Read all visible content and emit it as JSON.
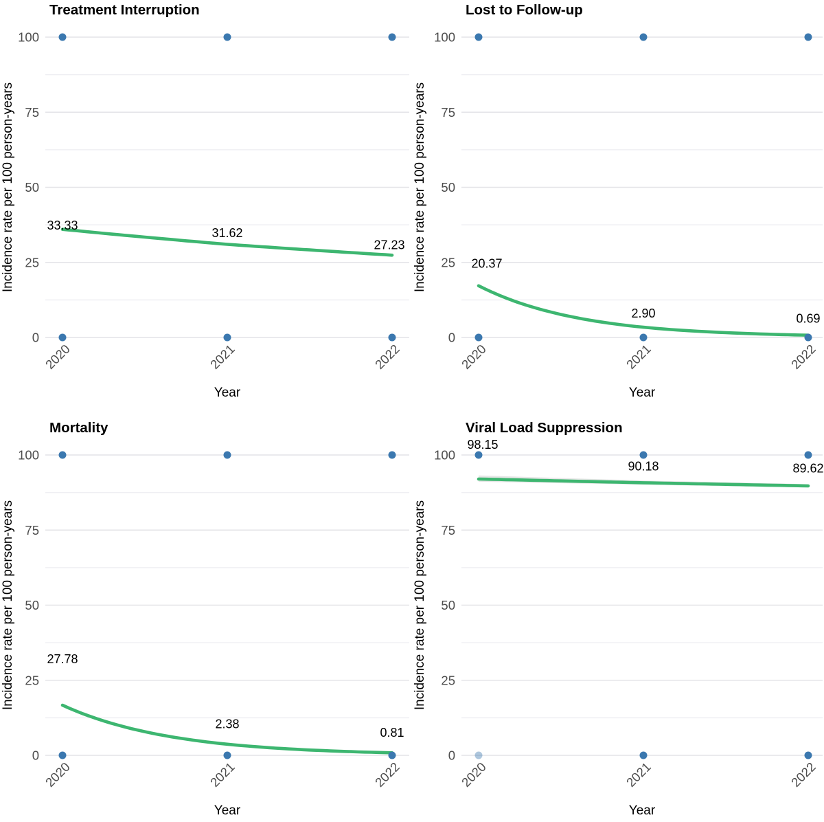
{
  "figure_title": "",
  "style": {
    "point_color": "#3b78af",
    "light_point_opacity": 0.42,
    "smooth_line_color": "#3db670",
    "ribbon_color": "#d2d2d2",
    "grid_major_color": "#e3e3e7",
    "grid_minor_color": "#efeff3",
    "tick_text_color": "#4d4d4d",
    "title_text_color": "#000000",
    "background": "#ffffff"
  },
  "chart_data": [
    {
      "type": "scatter",
      "title": "Treatment Interruption",
      "xlabel": "Year",
      "ylabel": "Incidence rate per 100 person-years",
      "x_ticks": [
        "2020",
        "2021",
        "2022"
      ],
      "y_ticks": [
        0,
        25,
        50,
        75,
        100
      ],
      "ylim": [
        0,
        100
      ],
      "grid": true,
      "legend": false,
      "x": [
        2020,
        2021,
        2022
      ],
      "rates": [
        33.33,
        31.62,
        27.23
      ],
      "points": [
        {
          "year": "2020",
          "value": 100
        },
        {
          "year": "2021",
          "value": 100
        },
        {
          "year": "2022",
          "value": 100
        },
        {
          "year": "2020",
          "value": 0
        },
        {
          "year": "2021",
          "value": 0
        },
        {
          "year": "2022",
          "value": 0
        }
      ],
      "trend": [
        36.0,
        31.0,
        27.4
      ],
      "labels": [
        {
          "text": "33.33",
          "year_index": 0,
          "at": 37.3,
          "dx": 0
        },
        {
          "text": "31.62",
          "year_index": 1,
          "at": 34.8,
          "dx": 0
        },
        {
          "text": "27.23",
          "year_index": 2,
          "at": 30.8,
          "dx": -4
        }
      ]
    },
    {
      "type": "scatter",
      "title": "Lost to Follow-up",
      "xlabel": "Year",
      "ylabel": "Incidence rate per 100 person-years",
      "x_ticks": [
        "2020",
        "2021",
        "2022"
      ],
      "y_ticks": [
        0,
        25,
        50,
        75,
        100
      ],
      "ylim": [
        0,
        100
      ],
      "grid": true,
      "legend": false,
      "x": [
        2020,
        2021,
        2022
      ],
      "rates": [
        20.37,
        2.9,
        0.69
      ],
      "points": [
        {
          "year": "2020",
          "value": 100
        },
        {
          "year": "2021",
          "value": 100
        },
        {
          "year": "2022",
          "value": 100
        },
        {
          "year": "2020",
          "value": 0
        },
        {
          "year": "2021",
          "value": 0
        },
        {
          "year": "2022",
          "value": 0
        }
      ],
      "trend": [
        17.2,
        3.4,
        0.75
      ],
      "labels": [
        {
          "text": "20.37",
          "year_index": 0,
          "at": 24.6,
          "dx": 12
        },
        {
          "text": "2.90",
          "year_index": 1,
          "at": 8.0,
          "dx": 0
        },
        {
          "text": "0.69",
          "year_index": 2,
          "at": 6.3,
          "dx": 0
        }
      ]
    },
    {
      "type": "scatter",
      "title": "Mortality",
      "xlabel": "Year",
      "ylabel": "Incidence rate per 100 person-years",
      "x_ticks": [
        "2020",
        "2021",
        "2022"
      ],
      "y_ticks": [
        0,
        25,
        50,
        75,
        100
      ],
      "ylim": [
        0,
        100
      ],
      "grid": true,
      "legend": false,
      "x": [
        2020,
        2021,
        2022
      ],
      "rates": [
        27.78,
        2.38,
        0.81
      ],
      "points": [
        {
          "year": "2020",
          "value": 100
        },
        {
          "year": "2021",
          "value": 100
        },
        {
          "year": "2022",
          "value": 100
        },
        {
          "year": "2020",
          "value": 0
        },
        {
          "year": "2021",
          "value": 0
        },
        {
          "year": "2022",
          "value": 0
        }
      ],
      "trend": [
        16.7,
        3.7,
        0.85
      ],
      "labels": [
        {
          "text": "27.78",
          "year_index": 0,
          "at": 32.0,
          "dx": 0
        },
        {
          "text": "2.38",
          "year_index": 1,
          "at": 10.4,
          "dx": 0
        },
        {
          "text": "0.81",
          "year_index": 2,
          "at": 7.6,
          "dx": 0
        }
      ]
    },
    {
      "type": "scatter",
      "title": "Viral Load Suppression",
      "xlabel": "Year",
      "ylabel": "Incidence rate per 100 person-years",
      "x_ticks": [
        "2020",
        "2021",
        "2022"
      ],
      "y_ticks": [
        0,
        25,
        50,
        75,
        100
      ],
      "ylim": [
        0,
        100
      ],
      "grid": true,
      "legend": false,
      "x": [
        2020,
        2021,
        2022
      ],
      "rates": [
        98.15,
        90.18,
        89.62
      ],
      "points": [
        {
          "year": "2020",
          "value": 100
        },
        {
          "year": "2021",
          "value": 100
        },
        {
          "year": "2022",
          "value": 100
        },
        {
          "year": "2020",
          "value": 0,
          "light": true
        },
        {
          "year": "2021",
          "value": 0
        },
        {
          "year": "2022",
          "value": 0
        }
      ],
      "trend": [
        92.0,
        90.75,
        89.7
      ],
      "ribbon": {
        "top": [
          93.2,
          91.5,
          90.3
        ],
        "bottom": [
          91.1,
          90.1,
          89.2
        ]
      },
      "labels": [
        {
          "text": "98.15",
          "year_index": 0,
          "at": 103.4,
          "dx": 6
        },
        {
          "text": "90.18",
          "year_index": 1,
          "at": 96.2,
          "dx": 0
        },
        {
          "text": "89.62",
          "year_index": 2,
          "at": 95.5,
          "dx": 0
        }
      ]
    }
  ]
}
